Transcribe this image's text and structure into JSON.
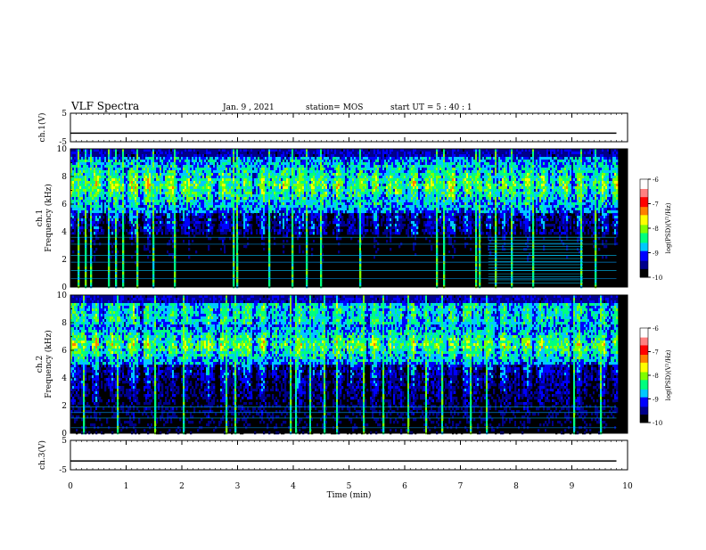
{
  "header": {
    "title": "VLF Spectra",
    "date": "Jan. 9 , 2021",
    "station": "station= MOS",
    "start": "start UT = 5 : 40 : 1"
  },
  "colors": {
    "spectrum": [
      "#000000",
      "#00008b",
      "#0000ff",
      "#00c8ff",
      "#00ff7f",
      "#7fff00",
      "#ffff00",
      "#ff7f00",
      "#ff0000",
      "#ffffff"
    ]
  },
  "chart_data": [
    {
      "type": "line",
      "name": "ch1-waveform",
      "ylabel": "ch.1(V)",
      "ylim": [
        -5,
        5
      ],
      "yticks": [
        "5",
        "-5"
      ],
      "xlim": [
        0,
        10
      ],
      "x": [
        0,
        9.8
      ],
      "y": [
        -2,
        -2
      ]
    },
    {
      "type": "heatmap",
      "name": "ch1-spectrogram",
      "ylabel_top": "ch.1",
      "ylabel": "Frequency (kHz)",
      "ylim": [
        0,
        10
      ],
      "yticks": [
        "10",
        "8",
        "6",
        "4",
        "2",
        "0"
      ],
      "xlim": [
        0,
        10
      ],
      "data_end_min": 9.8,
      "intense_band_khz": [
        5.5,
        9.5
      ],
      "colorbar": {
        "label": "log(PSD)(V²/Hz)",
        "range": [
          -10,
          -6
        ],
        "ticks": [
          "-6",
          "-7",
          "-8",
          "-9",
          "-10"
        ]
      }
    },
    {
      "type": "heatmap",
      "name": "ch2-spectrogram",
      "ylabel_top": "ch.2",
      "ylabel": "Frequency (kHz)",
      "ylim": [
        0,
        10
      ],
      "yticks": [
        "10",
        "8",
        "6",
        "4",
        "2",
        "0"
      ],
      "xlim": [
        0,
        10
      ],
      "data_end_min": 9.8,
      "intense_band_khz": [
        5.0,
        8.0
      ],
      "colorbar": {
        "label": "log(PSD)(V²/Hz)",
        "range": [
          -10,
          -6
        ],
        "ticks": [
          "-6",
          "-7",
          "-8",
          "-9",
          "-10"
        ]
      }
    },
    {
      "type": "line",
      "name": "ch3-waveform",
      "ylabel": "ch.3(V)",
      "ylim": [
        -5,
        5
      ],
      "yticks": [
        "5",
        "-5"
      ],
      "xlim": [
        0,
        10
      ],
      "x": [
        0,
        9.8
      ],
      "y": [
        -2,
        -2
      ]
    }
  ],
  "xaxis": {
    "label": "Time (min)",
    "ticks": [
      "0",
      "1",
      "2",
      "3",
      "4",
      "5",
      "6",
      "7",
      "8",
      "9",
      "10"
    ]
  }
}
